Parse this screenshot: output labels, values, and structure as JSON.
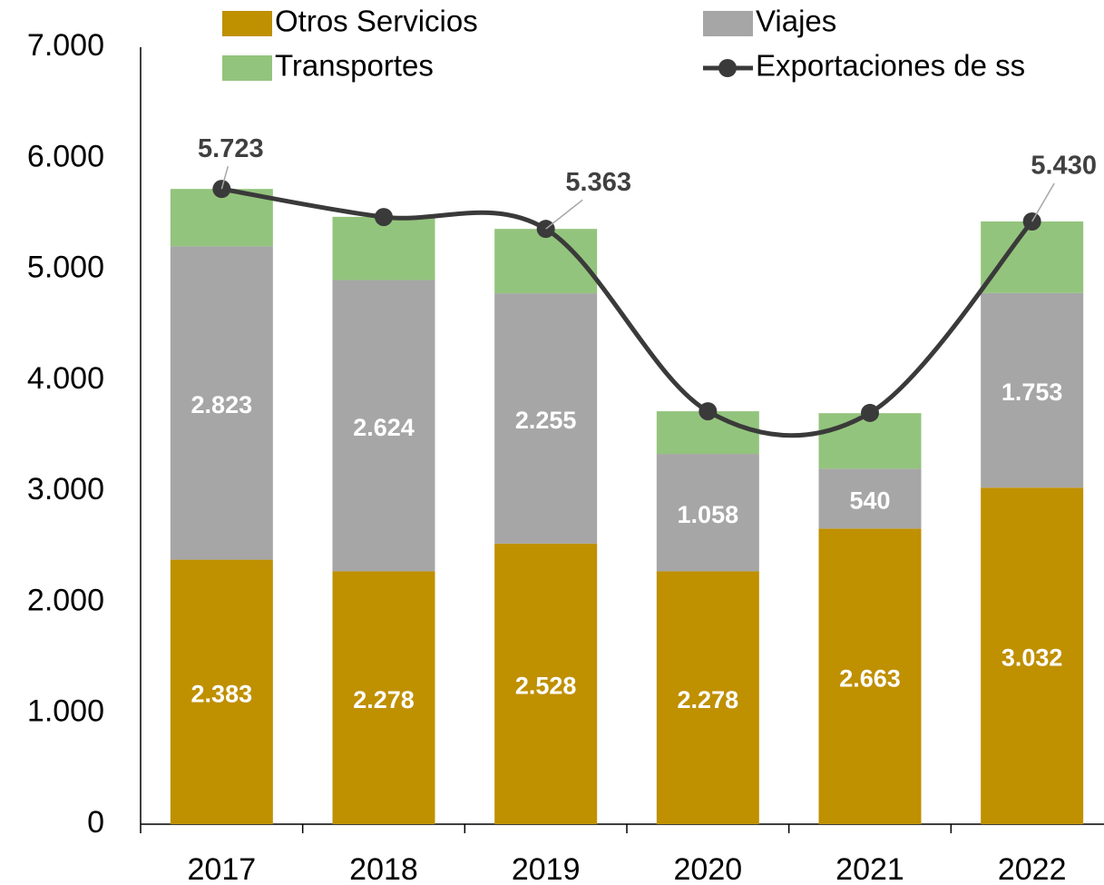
{
  "chart_data": {
    "type": "stacked_bar_line",
    "categories": [
      "2017",
      "2018",
      "2019",
      "2020",
      "2021",
      "2022"
    ],
    "series": [
      {
        "name": "Otros Servicios",
        "color": "#bf9000",
        "values": [
          2383,
          2278,
          2528,
          2278,
          2663,
          3032
        ],
        "value_labels": [
          "2.383",
          "2.278",
          "2.528",
          "2.278",
          "2.663",
          "3.032"
        ]
      },
      {
        "name": "Viajes",
        "color": "#a6a6a6",
        "values": [
          2823,
          2624,
          2255,
          1058,
          540,
          1753
        ],
        "value_labels": [
          "2.823",
          "2.624",
          "2.255",
          "1.058",
          "540",
          "1.753"
        ]
      },
      {
        "name": "Transportes",
        "color": "#93c47d",
        "values": [
          517,
          570,
          580,
          384,
          500,
          645
        ]
      },
      {
        "name": "Exportaciones de ss",
        "color": "#3a3a3a",
        "type": "line",
        "values": [
          5723,
          5470,
          5363,
          3720,
          3705,
          5430
        ],
        "value_labels": [
          "5.723",
          null,
          "5.363",
          null,
          null,
          "5.430"
        ]
      }
    ],
    "ylim": [
      0,
      7000
    ],
    "yticks": [
      0,
      {
        "value": 1000,
        "label": "1.000"
      },
      {
        "value": 2000,
        "label": "2.000"
      },
      {
        "value": 3000,
        "label": "3.000"
      },
      {
        "value": 4000,
        "label": "4.000"
      },
      {
        "value": 5000,
        "label": "5.000"
      },
      {
        "value": 6000,
        "label": "6.000"
      },
      {
        "value": 7000,
        "label": "7.000"
      }
    ],
    "grid": false
  }
}
